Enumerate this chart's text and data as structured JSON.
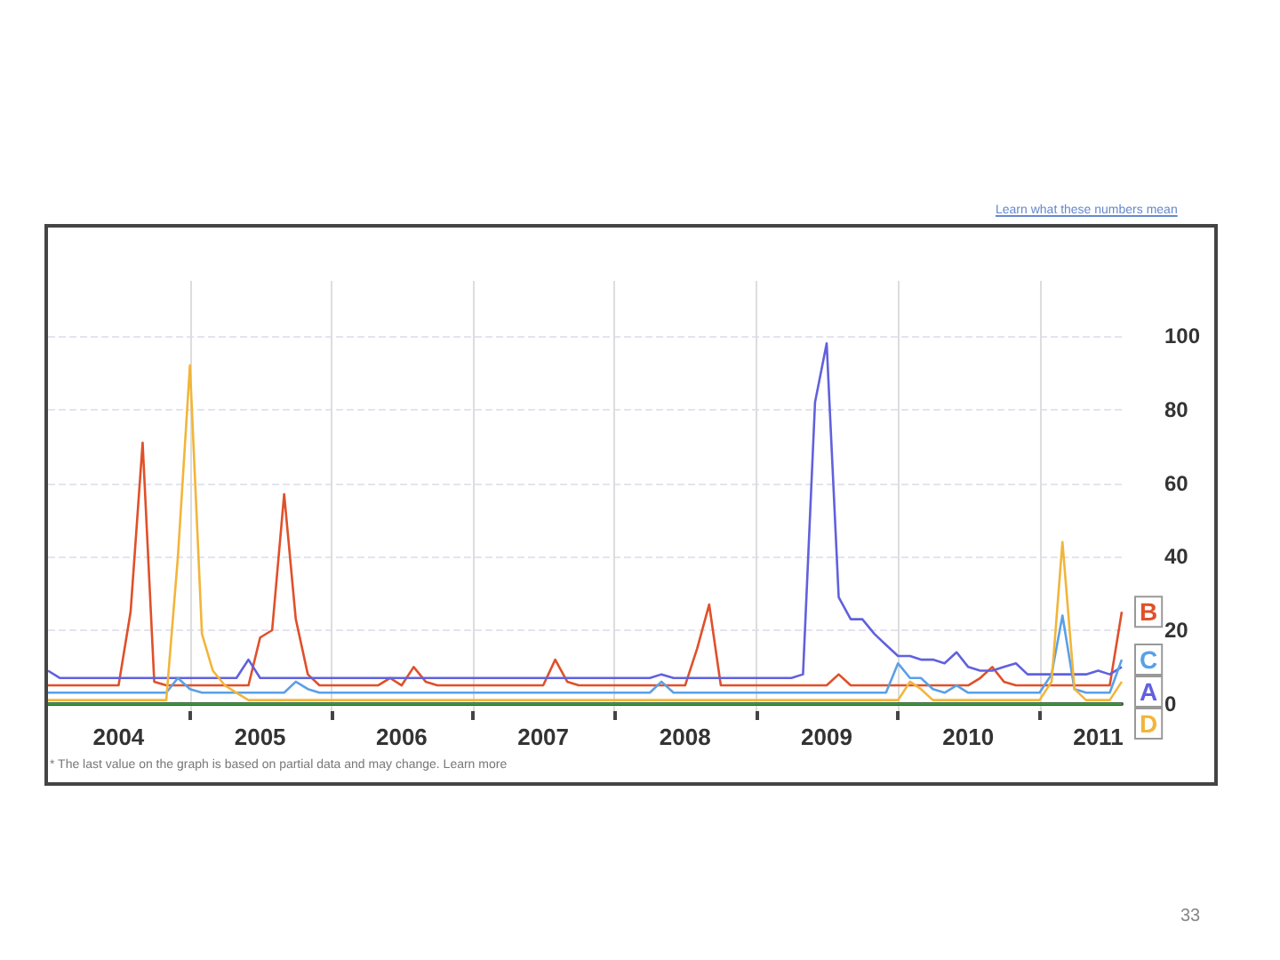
{
  "chart_data": {
    "type": "line",
    "x": [
      "2004-01",
      "2004-02",
      "2004-03",
      "2004-04",
      "2004-05",
      "2004-06",
      "2004-07",
      "2004-08",
      "2004-09",
      "2004-10",
      "2004-11",
      "2004-12",
      "2005-01",
      "2005-02",
      "2005-03",
      "2005-04",
      "2005-05",
      "2005-06",
      "2005-07",
      "2005-08",
      "2005-09",
      "2005-10",
      "2005-11",
      "2005-12",
      "2006-01",
      "2006-02",
      "2006-03",
      "2006-04",
      "2006-05",
      "2006-06",
      "2006-07",
      "2006-08",
      "2006-09",
      "2006-10",
      "2006-11",
      "2006-12",
      "2007-01",
      "2007-02",
      "2007-03",
      "2007-04",
      "2007-05",
      "2007-06",
      "2007-07",
      "2007-08",
      "2007-09",
      "2007-10",
      "2007-11",
      "2007-12",
      "2008-01",
      "2008-02",
      "2008-03",
      "2008-04",
      "2008-05",
      "2008-06",
      "2008-07",
      "2008-08",
      "2008-09",
      "2008-10",
      "2008-11",
      "2008-12",
      "2009-01",
      "2009-02",
      "2009-03",
      "2009-04",
      "2009-05",
      "2009-06",
      "2009-07",
      "2009-08",
      "2009-09",
      "2009-10",
      "2009-11",
      "2009-12",
      "2010-01",
      "2010-02",
      "2010-03",
      "2010-04",
      "2010-05",
      "2010-06",
      "2010-07",
      "2010-08",
      "2010-09",
      "2010-10",
      "2010-11",
      "2010-12",
      "2011-01",
      "2011-02",
      "2011-03",
      "2011-04",
      "2011-05",
      "2011-06",
      "2011-07",
      "2011-08"
    ],
    "series": [
      {
        "name": "B",
        "color": "#e0502a",
        "values": [
          5,
          5,
          5,
          5,
          5,
          5,
          5,
          25,
          71,
          6,
          5,
          5,
          5,
          5,
          5,
          5,
          5,
          5,
          18,
          20,
          57,
          23,
          8,
          5,
          5,
          5,
          5,
          5,
          5,
          7,
          5,
          10,
          6,
          5,
          5,
          5,
          5,
          5,
          5,
          5,
          5,
          5,
          5,
          12,
          6,
          5,
          5,
          5,
          5,
          5,
          5,
          5,
          5,
          5,
          5,
          15,
          27,
          5,
          5,
          5,
          5,
          5,
          5,
          5,
          5,
          5,
          5,
          8,
          5,
          5,
          5,
          5,
          5,
          5,
          5,
          5,
          5,
          5,
          5,
          7,
          10,
          6,
          5,
          5,
          5,
          5,
          5,
          5,
          5,
          5,
          5,
          25
        ]
      },
      {
        "name": "A",
        "color": "#6161dd",
        "values": [
          9,
          7,
          7,
          7,
          7,
          7,
          7,
          7,
          7,
          7,
          7,
          7,
          7,
          7,
          7,
          7,
          7,
          12,
          7,
          7,
          7,
          7,
          7,
          7,
          7,
          7,
          7,
          7,
          7,
          7,
          7,
          7,
          7,
          7,
          7,
          7,
          7,
          7,
          7,
          7,
          7,
          7,
          7,
          7,
          7,
          7,
          7,
          7,
          7,
          7,
          7,
          7,
          8,
          7,
          7,
          7,
          7,
          7,
          7,
          7,
          7,
          7,
          7,
          7,
          8,
          82,
          98,
          29,
          23,
          23,
          19,
          16,
          13,
          13,
          12,
          12,
          11,
          14,
          10,
          9,
          9,
          10,
          11,
          8,
          8,
          8,
          8,
          8,
          8,
          9,
          8,
          10
        ]
      },
      {
        "name": "C",
        "color": "#5aa0e6",
        "values": [
          3,
          3,
          3,
          3,
          3,
          3,
          3,
          3,
          3,
          3,
          3,
          7,
          4,
          3,
          3,
          3,
          3,
          3,
          3,
          3,
          3,
          6,
          4,
          3,
          3,
          3,
          3,
          3,
          3,
          3,
          3,
          3,
          3,
          3,
          3,
          3,
          3,
          3,
          3,
          3,
          3,
          3,
          3,
          3,
          3,
          3,
          3,
          3,
          3,
          3,
          3,
          3,
          6,
          3,
          3,
          3,
          3,
          3,
          3,
          3,
          3,
          3,
          3,
          3,
          3,
          3,
          3,
          3,
          3,
          3,
          3,
          3,
          11,
          7,
          7,
          4,
          3,
          5,
          3,
          3,
          3,
          3,
          3,
          3,
          3,
          8,
          24,
          4,
          3,
          3,
          3,
          12
        ]
      },
      {
        "name": "D",
        "color": "#f2b53a",
        "values": [
          1,
          1,
          1,
          1,
          1,
          1,
          1,
          1,
          1,
          1,
          1,
          40,
          92,
          19,
          9,
          5,
          3,
          1,
          1,
          1,
          1,
          1,
          1,
          1,
          1,
          1,
          1,
          1,
          1,
          1,
          1,
          1,
          1,
          1,
          1,
          1,
          1,
          1,
          1,
          1,
          1,
          1,
          1,
          1,
          1,
          1,
          1,
          1,
          1,
          1,
          1,
          1,
          1,
          1,
          1,
          1,
          1,
          1,
          1,
          1,
          1,
          1,
          1,
          1,
          1,
          1,
          1,
          1,
          1,
          1,
          1,
          1,
          1,
          6,
          4,
          1,
          1,
          1,
          1,
          1,
          1,
          1,
          1,
          1,
          1,
          6,
          44,
          4,
          1,
          1,
          1,
          6
        ]
      },
      {
        "color": "#3a9a3a",
        "values": [
          0,
          0,
          0,
          0,
          0,
          0,
          0,
          0,
          0,
          0,
          0,
          0,
          0,
          0,
          0,
          0,
          0,
          0,
          0,
          0,
          0,
          0,
          0,
          0,
          0,
          0,
          0,
          0,
          0,
          0,
          0,
          0,
          0,
          0,
          0,
          0,
          0,
          0,
          0,
          0,
          0,
          0,
          0,
          0,
          0,
          0,
          0,
          0,
          0,
          0,
          0,
          0,
          0,
          0,
          0,
          0,
          0,
          0,
          0,
          0,
          0,
          0,
          0,
          0,
          0,
          0,
          0,
          0,
          0,
          0,
          0,
          0,
          0,
          0,
          0,
          0,
          0,
          0,
          0,
          0,
          0,
          0,
          0,
          0,
          0,
          0,
          0,
          0,
          0,
          0,
          0,
          0
        ]
      }
    ],
    "xlim": [
      "2004-01",
      "2011-08"
    ],
    "xticks": [
      {
        "value": "2004-07",
        "label": "2004"
      },
      {
        "value": "2005-01",
        "label": null
      },
      {
        "value": "2005-07",
        "label": "2005"
      },
      {
        "value": "2006-01",
        "label": null
      },
      {
        "value": "2006-07",
        "label": "2006"
      },
      {
        "value": "2007-01",
        "label": null
      },
      {
        "value": "2007-07",
        "label": "2007"
      },
      {
        "value": "2008-01",
        "label": null
      },
      {
        "value": "2008-07",
        "label": "2008"
      },
      {
        "value": "2009-01",
        "label": null
      },
      {
        "value": "2009-07",
        "label": "2009"
      },
      {
        "value": "2010-01",
        "label": null
      },
      {
        "value": "2010-07",
        "label": "2010"
      },
      {
        "value": "2011-01",
        "label": null
      },
      {
        "value": "2011-06",
        "label": "2011"
      }
    ],
    "ylim": [
      -2,
      115
    ],
    "yticks": [
      0,
      20,
      40,
      60,
      80,
      100
    ],
    "grid": true,
    "marker": "none",
    "annotations": [
      "Learn what these numbers mean",
      "* The last value on the graph is based on partial data and may change. Learn more",
      "33"
    ]
  }
}
